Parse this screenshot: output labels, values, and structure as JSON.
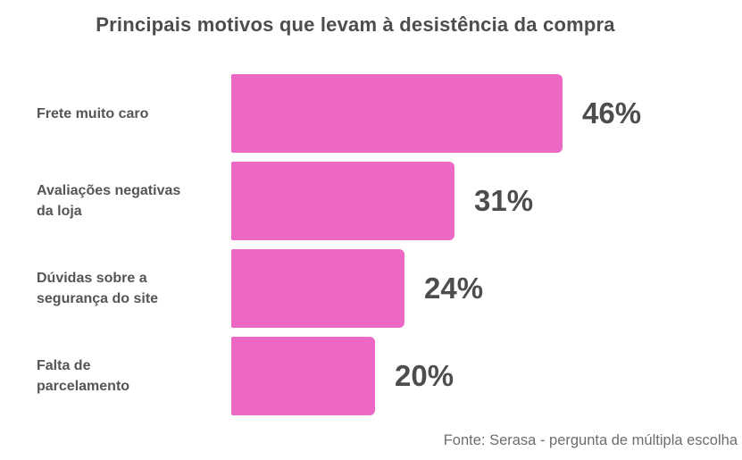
{
  "header": {
    "title": "Principais motivos que levam à desistência da compra"
  },
  "footer": {
    "source": "Fonte: Serasa - pergunta de múltipla escolha"
  },
  "colors": {
    "bar": "#ed67c5",
    "title_text": "#4d4d4d",
    "category_text": "#555555",
    "value_text": "#4d4d4d",
    "source_text": "#6d6d6d",
    "background": "#ffffff"
  },
  "chart_data": {
    "type": "bar",
    "orientation": "horizontal",
    "title": "Principais motivos que levam à desistência da compra",
    "categories": [
      "Frete muito caro",
      "Avaliações negativas da loja",
      "Dúvidas sobre a segurança do site",
      "Falta de parcelamento"
    ],
    "category_lines": [
      [
        "Frete muito caro"
      ],
      [
        "Avaliações negativas",
        "da loja"
      ],
      [
        "Dúvidas sobre a",
        "segurança do site"
      ],
      [
        "Falta de",
        "parcelamento"
      ]
    ],
    "values": [
      46,
      31,
      24,
      20
    ],
    "value_labels": [
      "46%",
      "31%",
      "24%",
      "20%"
    ],
    "unit": "%",
    "xlabel": "",
    "ylabel": "",
    "axis_visible": false,
    "grid": false,
    "legend": false,
    "value_label_position": "right-of-bar",
    "source": "Fonte: Serasa - pergunta de múltipla escolha"
  }
}
